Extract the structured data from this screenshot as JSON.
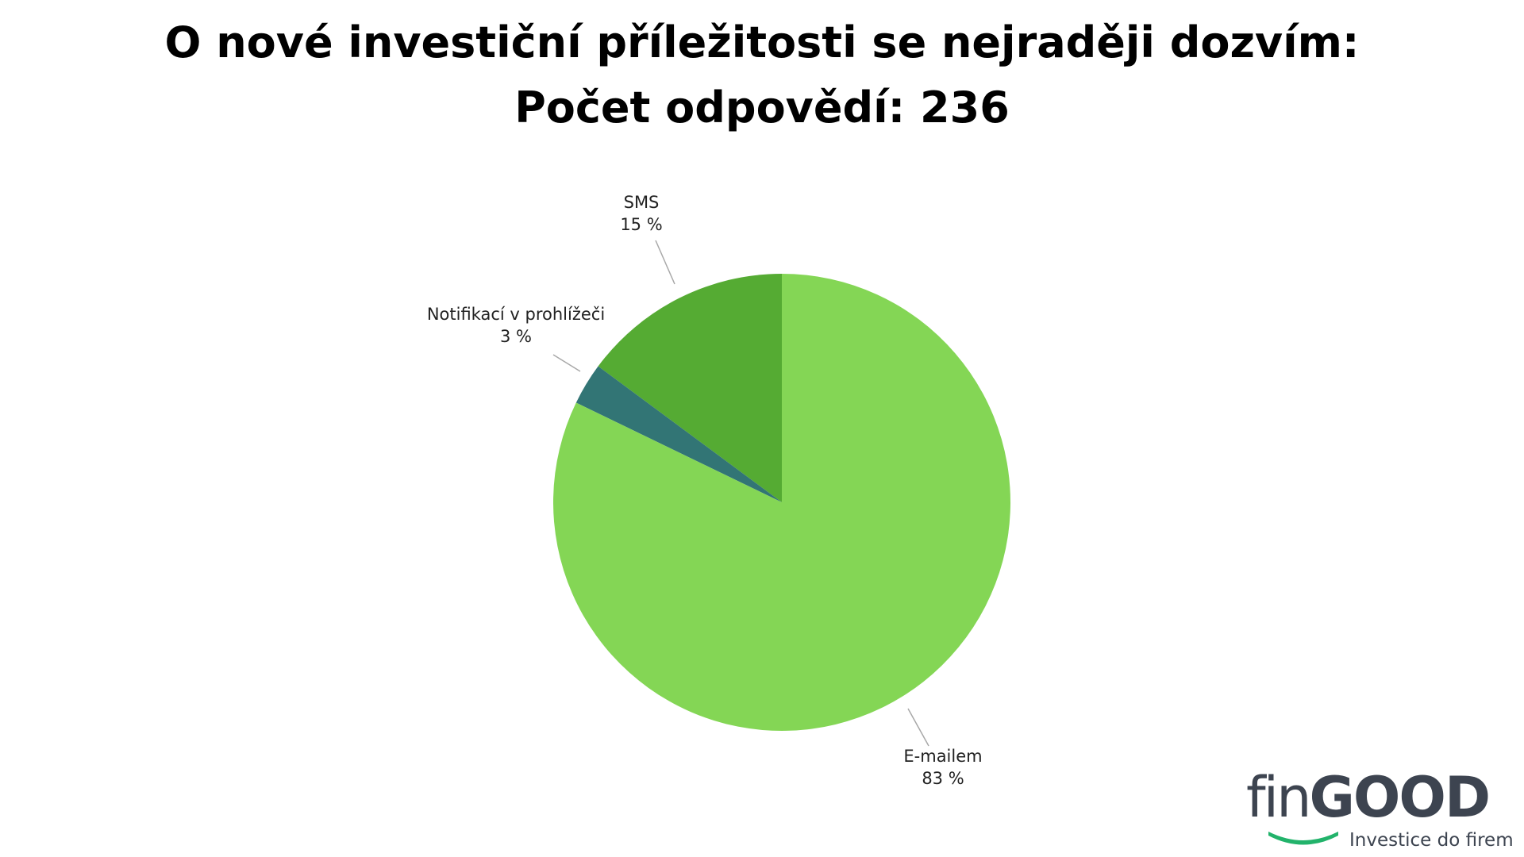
{
  "title_line1": "O nové investiční příležitosti se nejraději dozvím:",
  "title_line2": "Počet odpovědí: 236",
  "chart_data": {
    "type": "pie",
    "slices": [
      {
        "label": "SMS",
        "value": 15,
        "value_text": "15 %",
        "color": "#55ab33"
      },
      {
        "label": "Notifikací v prohlížeči",
        "value": 3,
        "value_text": "3 %",
        "color": "#327575"
      },
      {
        "label": "E-mailem",
        "value": 83,
        "value_text": "83 %",
        "color": "#84d655"
      }
    ],
    "start_angle_deg": 0,
    "direction": "counter-clockwise",
    "legend": "none"
  },
  "logo": {
    "fin": "fin",
    "good": "GOOD",
    "tagline": "Investice do firem",
    "text_color": "#3d4450",
    "smile_color": "#22b36b"
  }
}
